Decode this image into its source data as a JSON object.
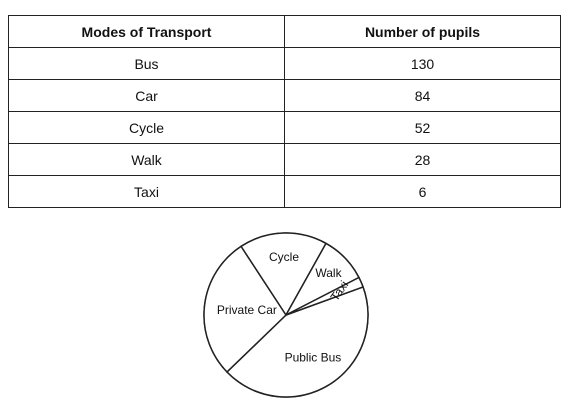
{
  "table": {
    "headers": [
      "Modes of Transport",
      "Number of pupils"
    ],
    "rows": [
      {
        "mode": "Bus",
        "count": "130"
      },
      {
        "mode": "Car",
        "count": "84"
      },
      {
        "mode": "Cycle",
        "count": "52"
      },
      {
        "mode": "Walk",
        "count": "28"
      },
      {
        "mode": "Taxi",
        "count": "6"
      }
    ]
  },
  "chart_data": {
    "type": "pie",
    "slices": [
      {
        "label": "Public Bus",
        "value": 130
      },
      {
        "label": "Private Car",
        "value": 84
      },
      {
        "label": "Cycle",
        "value": 52
      },
      {
        "label": "Walk",
        "value": 28
      },
      {
        "label": "Taxi",
        "value": 6
      }
    ]
  }
}
